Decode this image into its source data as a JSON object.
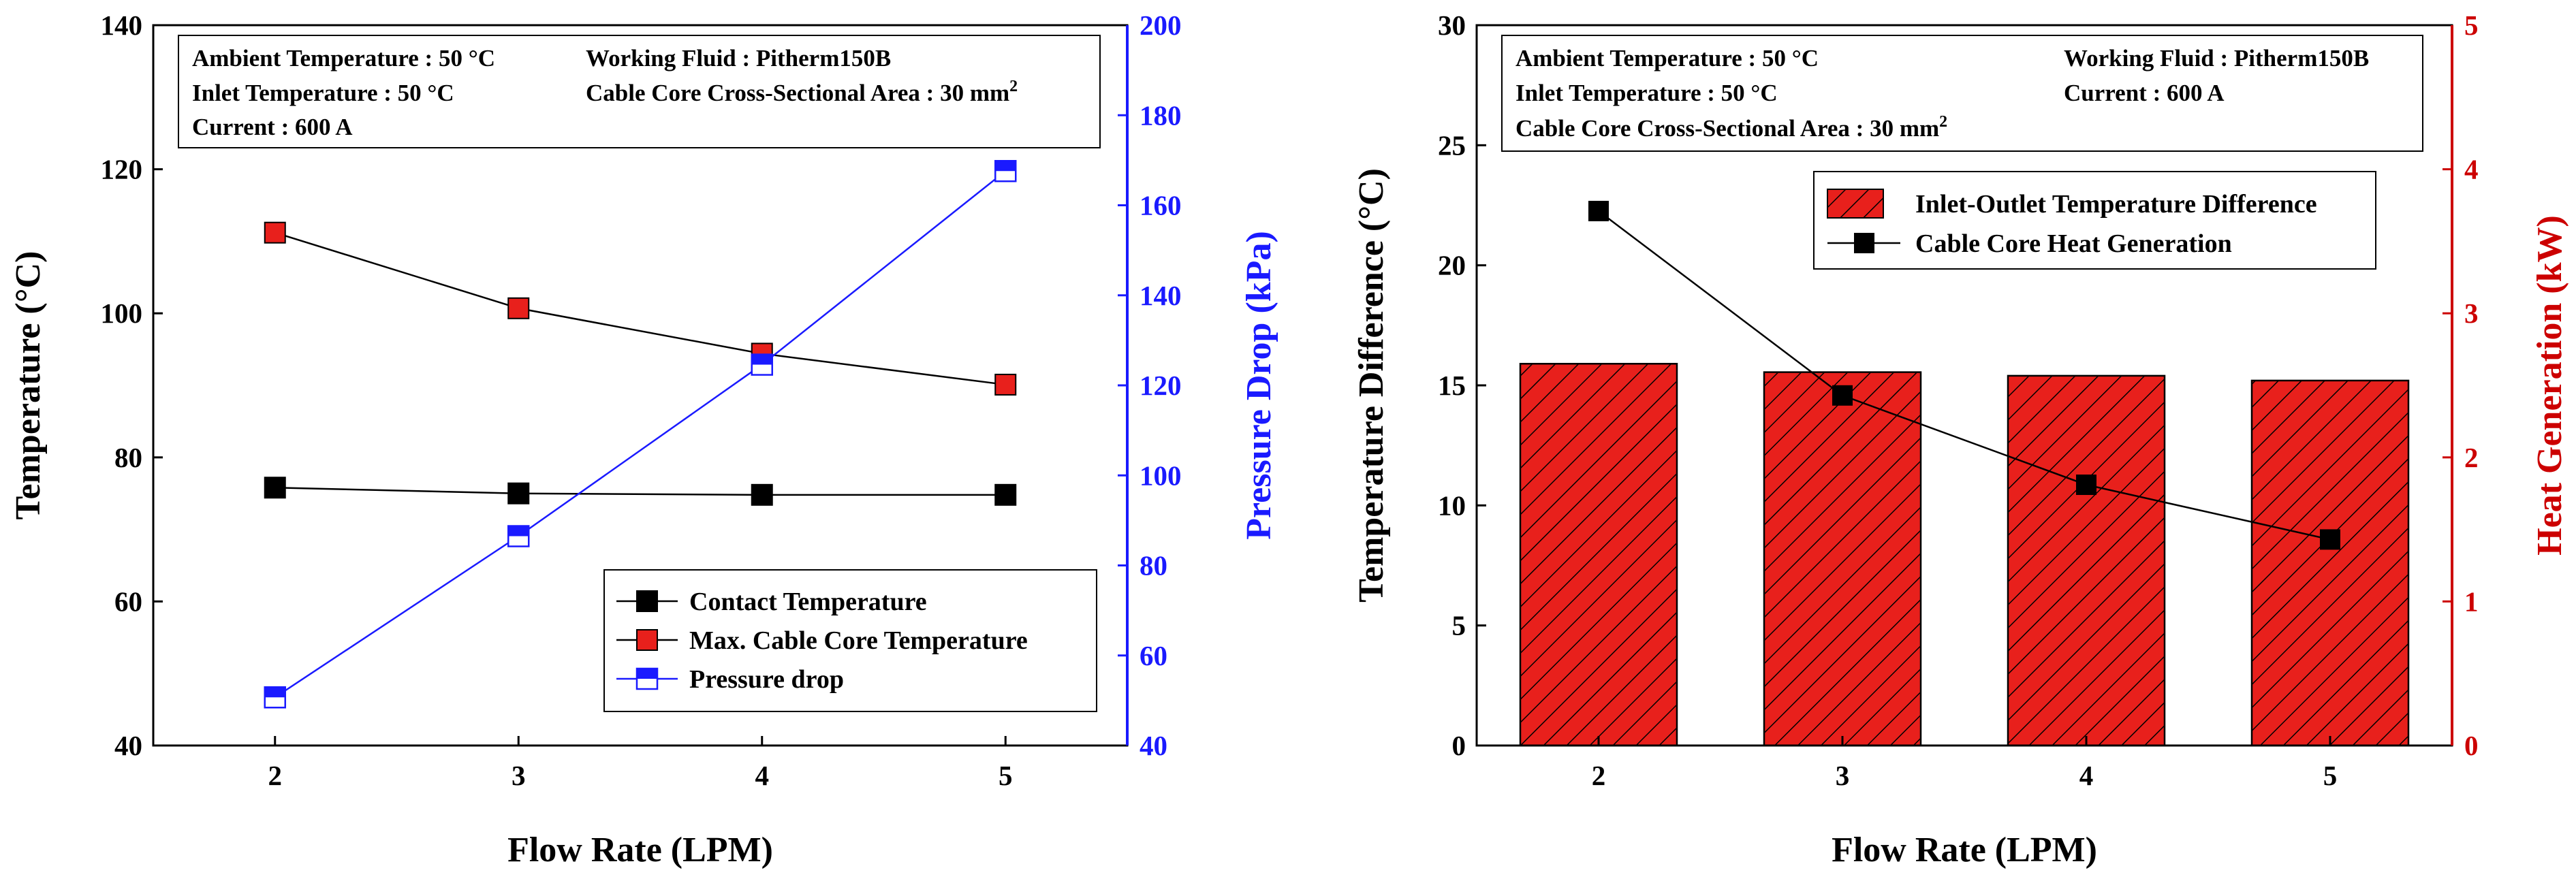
{
  "chart_data": [
    {
      "type": "line",
      "xlabel": "Flow Rate (LPM)",
      "ylabel": "Temperature (°C)",
      "y2label": "Pressure Drop (kPa)",
      "x": [
        2,
        3,
        4,
        5
      ],
      "xlim": [
        1.5,
        5.5
      ],
      "xticks": [
        2,
        3,
        4,
        5
      ],
      "ylim": [
        40,
        140
      ],
      "yticks": [
        40,
        60,
        80,
        100,
        120,
        140
      ],
      "y2lim": [
        40,
        200
      ],
      "y2ticks": [
        40,
        60,
        80,
        100,
        120,
        140,
        160,
        180,
        200
      ],
      "info": {
        "ambient": "Ambient Temperature : 50 °C",
        "fluid": "Working Fluid : Pitherm150B",
        "inlet": "Inlet Temperature : 50 °C",
        "area": "Cable Core Cross-Sectional Area : 30 mm",
        "area_sup": "2",
        "current": "Current : 600 A"
      },
      "legend_position": "bottom-right",
      "series": [
        {
          "name": "Contact Temperature",
          "axis": "left",
          "marker": "square-filled",
          "color": "#000000",
          "values": [
            75.8,
            75.0,
            74.8,
            74.8
          ]
        },
        {
          "name": "Max. Cable Core Temperature",
          "axis": "left",
          "marker": "square-filled",
          "color": "#e8201c",
          "values": [
            111.2,
            100.7,
            94.4,
            90.1
          ]
        },
        {
          "name": "Pressure drop",
          "axis": "right",
          "marker": "square-half",
          "color": "#1a1aff",
          "values": [
            50.7,
            86.5,
            124.6,
            167.6
          ]
        }
      ]
    },
    {
      "type": "bar",
      "xlabel": "Flow Rate (LPM)",
      "ylabel": "Temperature Difference (°C)",
      "y2label": "Heat Generation (kW)",
      "categories": [
        "2",
        "3",
        "4",
        "5"
      ],
      "ylim": [
        0,
        30
      ],
      "yticks": [
        0,
        5,
        10,
        15,
        20,
        25,
        30
      ],
      "y2lim": [
        0,
        5
      ],
      "y2ticks": [
        0,
        1,
        2,
        3,
        4,
        5
      ],
      "info": {
        "ambient": "Ambient Temperature : 50 °C",
        "fluid": "Working Fluid : Pitherm150B",
        "inlet": "Inlet Temperature : 50 °C",
        "current": "Current : 600 A",
        "area": "Cable Core Cross-Sectional Area : 30 mm",
        "area_sup": "2"
      },
      "legend_position": "top-right",
      "series": [
        {
          "name": "Inlet-Outlet Temperature Difference",
          "axis": "left",
          "kind": "bar",
          "color": "#e8201c",
          "hatch": true,
          "values": [
            15.9,
            15.55,
            15.4,
            15.2
          ]
        },
        {
          "name": "Cable Core Heat Generation",
          "axis": "right",
          "kind": "line",
          "marker": "square-filled",
          "color": "#000000",
          "values": [
            3.71,
            2.43,
            1.81,
            1.43
          ]
        }
      ]
    }
  ]
}
